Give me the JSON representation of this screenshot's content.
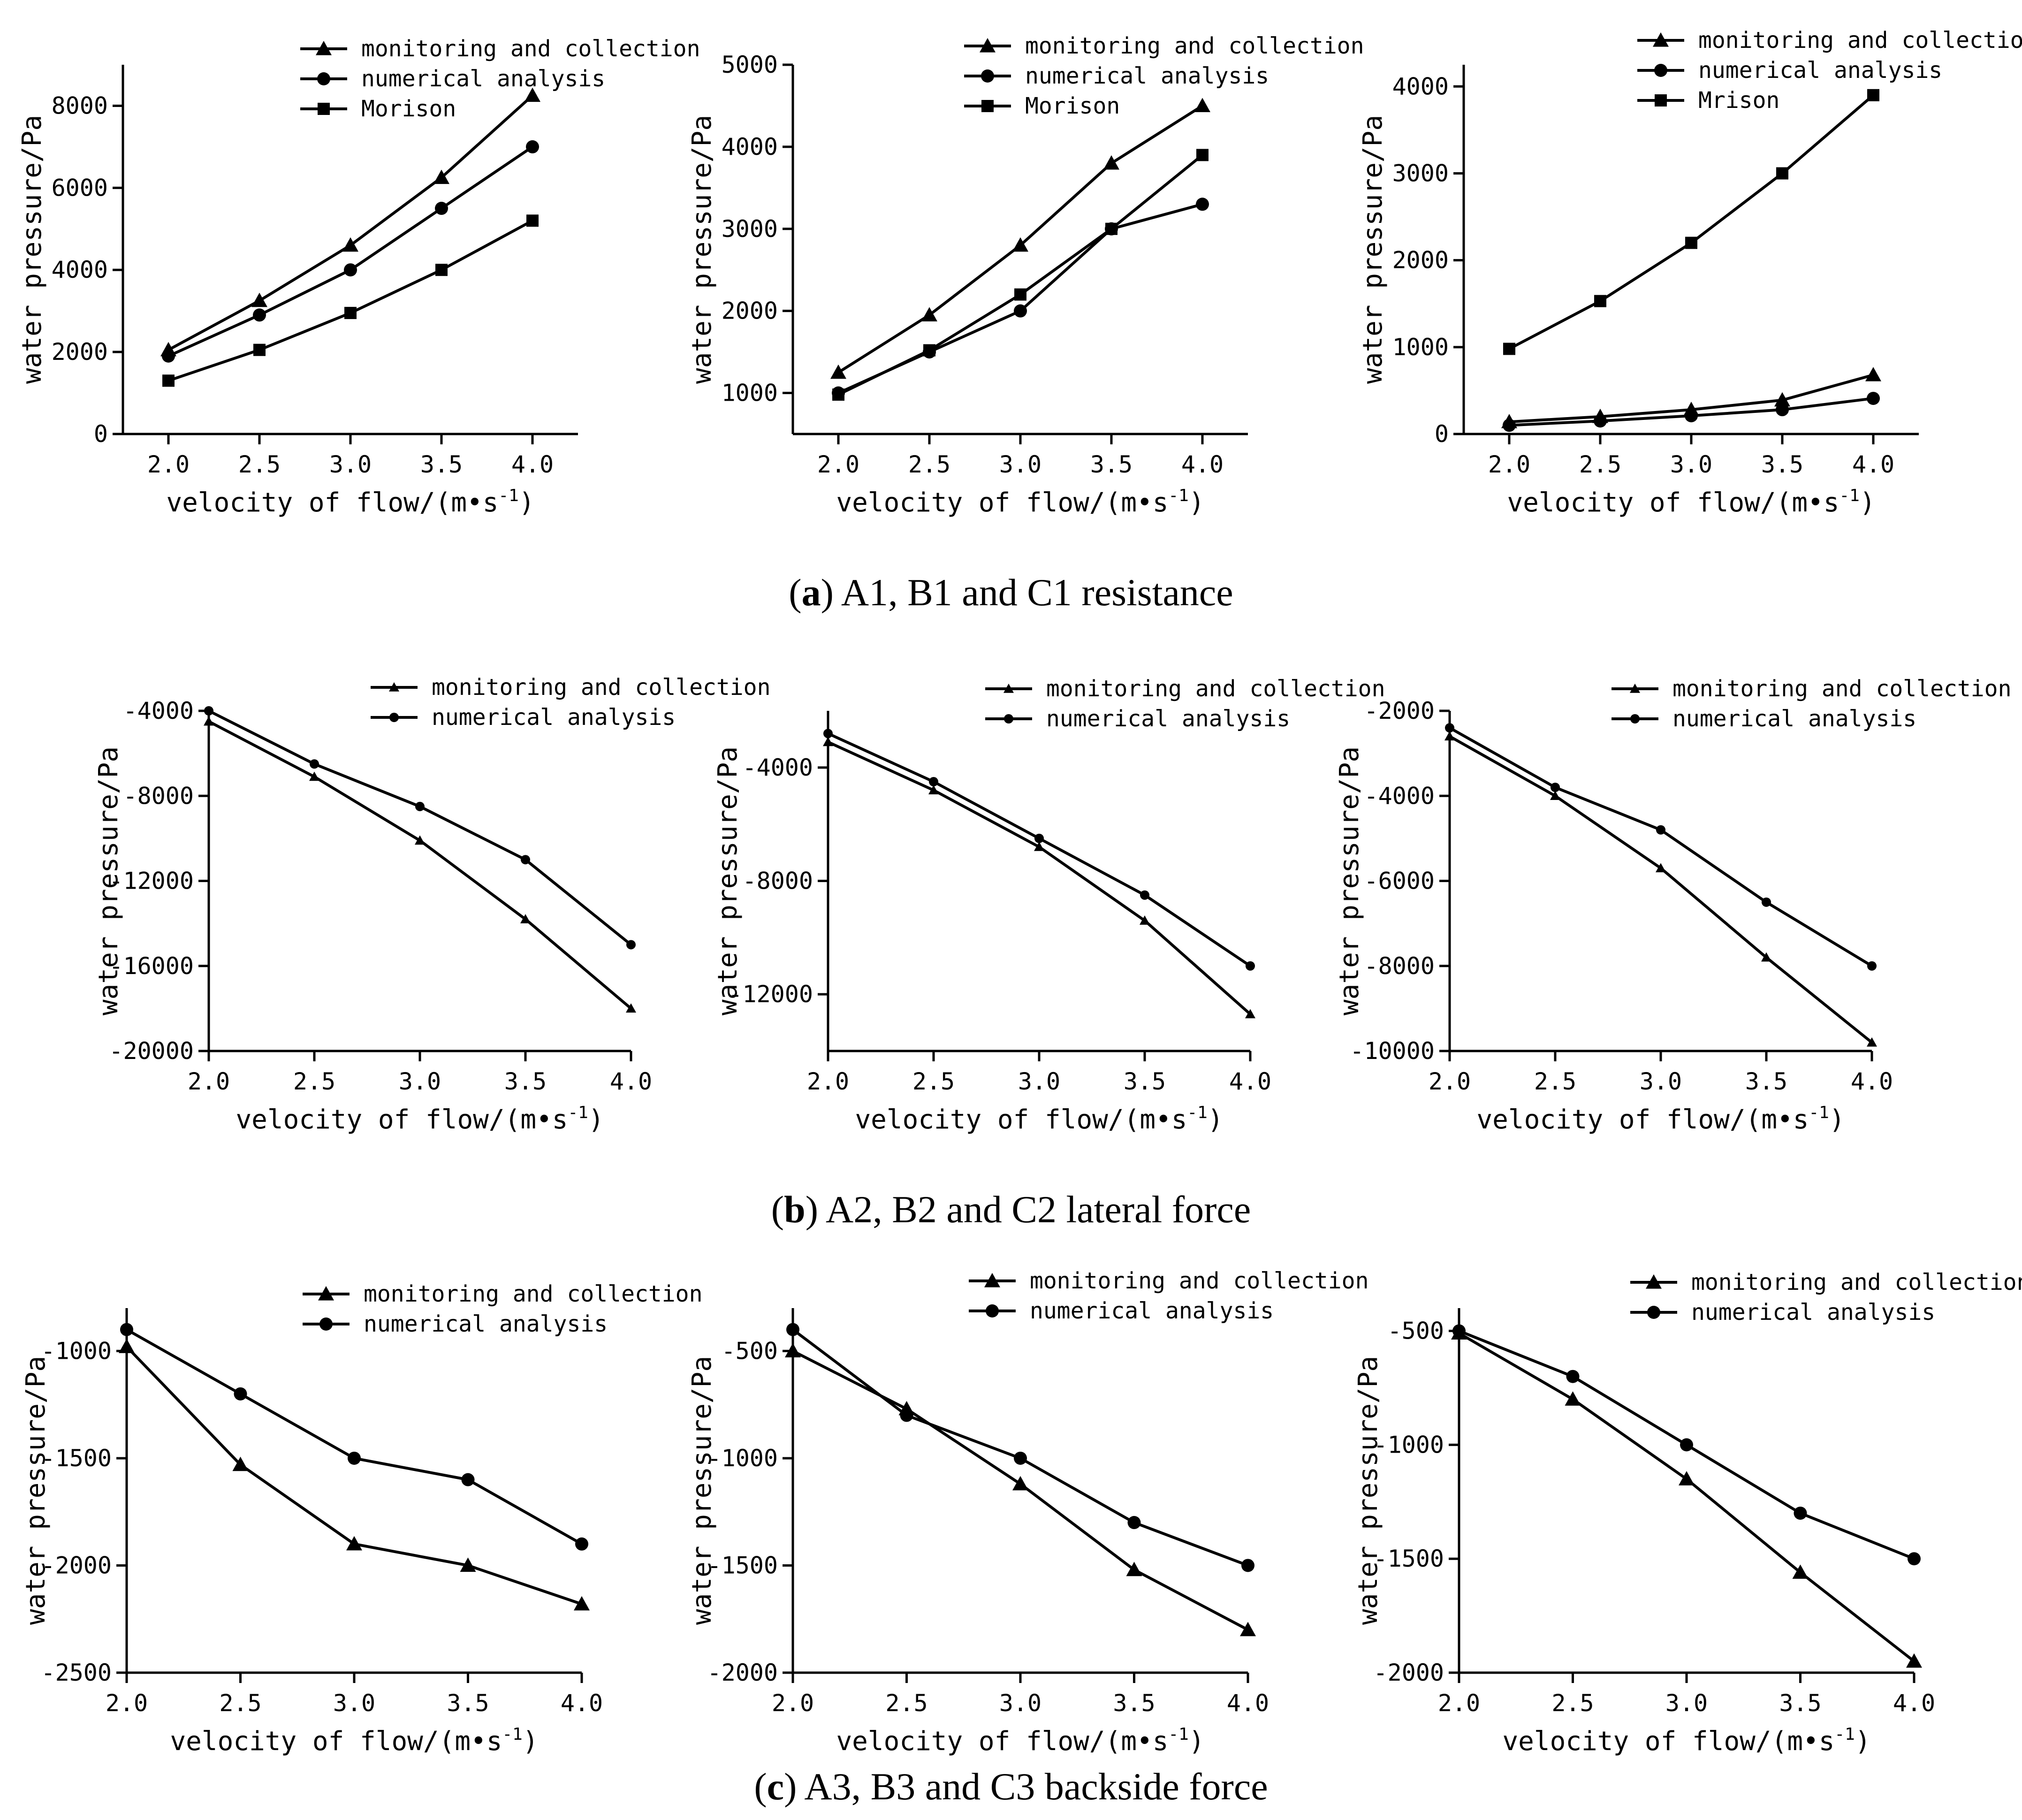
{
  "chart_data": [
    {
      "type": "line",
      "panel": "a-1",
      "xlabel": "velocity of flow/(m•s",
      "xlabel_sup": "-1",
      "xlabel_tail": ")",
      "ylabel": "water pressure/Pa",
      "x": [
        2.0,
        2.5,
        3.0,
        3.5,
        4.0
      ],
      "xticks": [
        2.0,
        2.5,
        3.0,
        3.5,
        4.0
      ],
      "xtick_labels": [
        "2.0",
        "2.5",
        "3.0",
        "3.5",
        "4.0"
      ],
      "yticks": [
        0,
        2000,
        4000,
        6000,
        8000
      ],
      "ytick_labels": [
        "0",
        "2000",
        "4000",
        "6000",
        "8000"
      ],
      "xlim": [
        1.75,
        4.25
      ],
      "ylim": [
        0,
        9000
      ],
      "series": [
        {
          "name": "monitoring and collection",
          "marker": "triangle",
          "values": [
            2050,
            3250,
            4600,
            6250,
            8250
          ]
        },
        {
          "name": "numerical analysis",
          "marker": "circle",
          "values": [
            1900,
            2900,
            4000,
            5500,
            7000
          ]
        },
        {
          "name": "Morison",
          "marker": "square",
          "values": [
            1300,
            2050,
            2950,
            4000,
            5200
          ]
        }
      ]
    },
    {
      "type": "line",
      "panel": "a-2",
      "xlabel": "velocity of flow/(m•s",
      "xlabel_sup": "-1",
      "xlabel_tail": ")",
      "ylabel": "water pressure/Pa",
      "x": [
        2.0,
        2.5,
        3.0,
        3.5,
        4.0
      ],
      "xticks": [
        2.0,
        2.5,
        3.0,
        3.5,
        4.0
      ],
      "xtick_labels": [
        "2.0",
        "2.5",
        "3.0",
        "3.5",
        "4.0"
      ],
      "yticks": [
        1000,
        2000,
        3000,
        4000,
        5000
      ],
      "ytick_labels": [
        "1000",
        "2000",
        "3000",
        "4000",
        "5000"
      ],
      "xlim": [
        1.75,
        4.25
      ],
      "ylim": [
        500,
        5000
      ],
      "series": [
        {
          "name": "monitoring and collection",
          "marker": "triangle",
          "values": [
            1250,
            1950,
            2800,
            3800,
            4500
          ]
        },
        {
          "name": "numerical analysis",
          "marker": "circle",
          "values": [
            1000,
            1500,
            2000,
            3000,
            3300
          ]
        },
        {
          "name": "Morison",
          "marker": "square",
          "values": [
            980,
            1520,
            2200,
            3000,
            3900
          ]
        }
      ]
    },
    {
      "type": "line",
      "panel": "a-3",
      "xlabel": "velocity of flow/(m•s",
      "xlabel_sup": "-1",
      "xlabel_tail": ")",
      "ylabel": "water pressure/Pa",
      "x": [
        2.0,
        2.5,
        3.0,
        3.5,
        4.0
      ],
      "xticks": [
        2.0,
        2.5,
        3.0,
        3.5,
        4.0
      ],
      "xtick_labels": [
        "2.0",
        "2.5",
        "3.0",
        "3.5",
        "4.0"
      ],
      "yticks": [
        0,
        1000,
        2000,
        3000,
        4000
      ],
      "ytick_labels": [
        "0",
        "1000",
        "2000",
        "3000",
        "4000"
      ],
      "xlim": [
        1.75,
        4.25
      ],
      "ylim": [
        0,
        4250
      ],
      "series": [
        {
          "name": "monitoring and collection",
          "marker": "triangle",
          "values": [
            140,
            200,
            280,
            390,
            680
          ]
        },
        {
          "name": "numerical analysis",
          "marker": "circle",
          "values": [
            100,
            150,
            210,
            280,
            410
          ]
        },
        {
          "name": "Mrison",
          "marker": "square",
          "values": [
            980,
            1530,
            2200,
            3000,
            3900
          ]
        }
      ]
    },
    {
      "type": "line",
      "panel": "b-1",
      "xlabel": "velocity of flow/(m•s",
      "xlabel_sup": "-1",
      "xlabel_tail": ")",
      "ylabel": "water pressure/Pa",
      "x": [
        2.0,
        2.5,
        3.0,
        3.5,
        4.0
      ],
      "xticks": [
        2.0,
        2.5,
        3.0,
        3.5,
        4.0
      ],
      "xtick_labels": [
        "2.0",
        "2.5",
        "3.0",
        "3.5",
        "4.0"
      ],
      "yticks": [
        -4000,
        -8000,
        -12000,
        -16000,
        -20000
      ],
      "ytick_labels": [
        "-4000",
        "-8000",
        "-12000",
        "-16000",
        "-20000"
      ],
      "xlim": [
        2.0,
        4.0
      ],
      "ylim": [
        -20000,
        -4000
      ],
      "series": [
        {
          "name": "monitoring and collection",
          "marker": "small-triangle",
          "values": [
            -4500,
            -7100,
            -10100,
            -13800,
            -18000
          ]
        },
        {
          "name": "numerical analysis",
          "marker": "small-circle",
          "values": [
            -4000,
            -6500,
            -8500,
            -11000,
            -15000
          ]
        }
      ]
    },
    {
      "type": "line",
      "panel": "b-2",
      "xlabel": "velocity of flow/(m•s",
      "xlabel_sup": "-1",
      "xlabel_tail": ")",
      "ylabel": "water pressure/Pa",
      "x": [
        2.0,
        2.5,
        3.0,
        3.5,
        4.0
      ],
      "xticks": [
        2.0,
        2.5,
        3.0,
        3.5,
        4.0
      ],
      "xtick_labels": [
        "2.0",
        "2.5",
        "3.0",
        "3.5",
        "4.0"
      ],
      "yticks": [
        -4000,
        -8000,
        -12000
      ],
      "ytick_labels": [
        "-4000",
        "-8000",
        "-12000"
      ],
      "xlim": [
        2.0,
        4.0
      ],
      "ylim": [
        -14000,
        -2000
      ],
      "series": [
        {
          "name": "monitoring and collection",
          "marker": "small-triangle",
          "values": [
            -3100,
            -4800,
            -6800,
            -9400,
            -12700
          ]
        },
        {
          "name": "numerical analysis",
          "marker": "small-circle",
          "values": [
            -2800,
            -4500,
            -6500,
            -8500,
            -11000
          ]
        }
      ]
    },
    {
      "type": "line",
      "panel": "b-3",
      "xlabel": "velocity of flow/(m•s",
      "xlabel_sup": "-1",
      "xlabel_tail": ")",
      "ylabel": "water pressure/Pa",
      "x": [
        2.0,
        2.5,
        3.0,
        3.5,
        4.0
      ],
      "xticks": [
        2.0,
        2.5,
        3.0,
        3.5,
        4.0
      ],
      "xtick_labels": [
        "2.0",
        "2.5",
        "3.0",
        "3.5",
        "4.0"
      ],
      "yticks": [
        -2000,
        -4000,
        -6000,
        -8000,
        -10000
      ],
      "ytick_labels": [
        "-2000",
        "-4000",
        "-6000",
        "-8000",
        "-10000"
      ],
      "xlim": [
        2.0,
        4.0
      ],
      "ylim": [
        -10000,
        -2000
      ],
      "series": [
        {
          "name": "monitoring and collection",
          "marker": "small-triangle",
          "values": [
            -2600,
            -4000,
            -5700,
            -7800,
            -9800
          ]
        },
        {
          "name": "numerical analysis",
          "marker": "small-circle",
          "values": [
            -2400,
            -3800,
            -4800,
            -6500,
            -8000
          ]
        }
      ]
    },
    {
      "type": "line",
      "panel": "c-1",
      "xlabel": "velocity of flow/(m•s",
      "xlabel_sup": "-1",
      "xlabel_tail": ")",
      "ylabel": "water pressure/Pa",
      "x": [
        2.0,
        2.5,
        3.0,
        3.5,
        4.0
      ],
      "xticks": [
        2.0,
        2.5,
        3.0,
        3.5,
        4.0
      ],
      "xtick_labels": [
        "2.0",
        "2.5",
        "3.0",
        "3.5",
        "4.0"
      ],
      "yticks": [
        -1000,
        -1500,
        -2000,
        -2500
      ],
      "ytick_labels": [
        "-1000",
        "-1500",
        "-2000",
        "-2500"
      ],
      "xlim": [
        2.0,
        4.0
      ],
      "ylim": [
        -2500,
        -800
      ],
      "series": [
        {
          "name": "monitoring and collection",
          "marker": "triangle",
          "values": [
            -980,
            -1530,
            -1900,
            -2000,
            -2180
          ]
        },
        {
          "name": "numerical analysis",
          "marker": "circle",
          "values": [
            -900,
            -1200,
            -1500,
            -1600,
            -1900
          ]
        }
      ]
    },
    {
      "type": "line",
      "panel": "c-2",
      "xlabel": "velocity of flow/(m•s",
      "xlabel_sup": "-1",
      "xlabel_tail": ")",
      "ylabel": "water pressure/Pa",
      "x": [
        2.0,
        2.5,
        3.0,
        3.5,
        4.0
      ],
      "xticks": [
        2.0,
        2.5,
        3.0,
        3.5,
        4.0
      ],
      "xtick_labels": [
        "2.0",
        "2.5",
        "3.0",
        "3.5",
        "4.0"
      ],
      "yticks": [
        -500,
        -1000,
        -1500,
        -2000
      ],
      "ytick_labels": [
        "-500",
        "-1000",
        "-1500",
        "-2000"
      ],
      "xlim": [
        2.0,
        4.0
      ],
      "ylim": [
        -2000,
        -300
      ],
      "series": [
        {
          "name": "monitoring and collection",
          "marker": "triangle",
          "values": [
            -500,
            -770,
            -1120,
            -1520,
            -1800
          ]
        },
        {
          "name": "numerical analysis",
          "marker": "circle",
          "values": [
            -400,
            -800,
            -1000,
            -1300,
            -1500
          ]
        }
      ]
    },
    {
      "type": "line",
      "panel": "c-3",
      "xlabel": "velocity of flow/(m•s",
      "xlabel_sup": "-1",
      "xlabel_tail": ")",
      "ylabel": "water pressure/Pa",
      "x": [
        2.0,
        2.5,
        3.0,
        3.5,
        4.0
      ],
      "xticks": [
        2.0,
        2.5,
        3.0,
        3.5,
        4.0
      ],
      "xtick_labels": [
        "2.0",
        "2.5",
        "3.0",
        "3.5",
        "4.0"
      ],
      "yticks": [
        -500,
        -1000,
        -1500,
        -2000
      ],
      "ytick_labels": [
        "-500",
        "-1000",
        "-1500",
        "-2000"
      ],
      "xlim": [
        2.0,
        4.0
      ],
      "ylim": [
        -2000,
        -400
      ],
      "series": [
        {
          "name": "monitoring and collection",
          "marker": "triangle",
          "values": [
            -510,
            -800,
            -1150,
            -1560,
            -1950
          ]
        },
        {
          "name": "numerical analysis",
          "marker": "circle",
          "values": [
            -500,
            -700,
            -1000,
            -1300,
            -1500
          ]
        }
      ]
    }
  ],
  "captions": [
    {
      "letter": "a",
      "open": "(",
      "close": ")",
      "text": " A1, B1 and C1 resistance"
    },
    {
      "letter": "b",
      "open": "(",
      "close": ")",
      "text": " A2, B2 and C2 lateral force"
    },
    {
      "letter": "c",
      "open": "(",
      "close": ")",
      "text": " A3, B3 and C3 backside force"
    }
  ]
}
